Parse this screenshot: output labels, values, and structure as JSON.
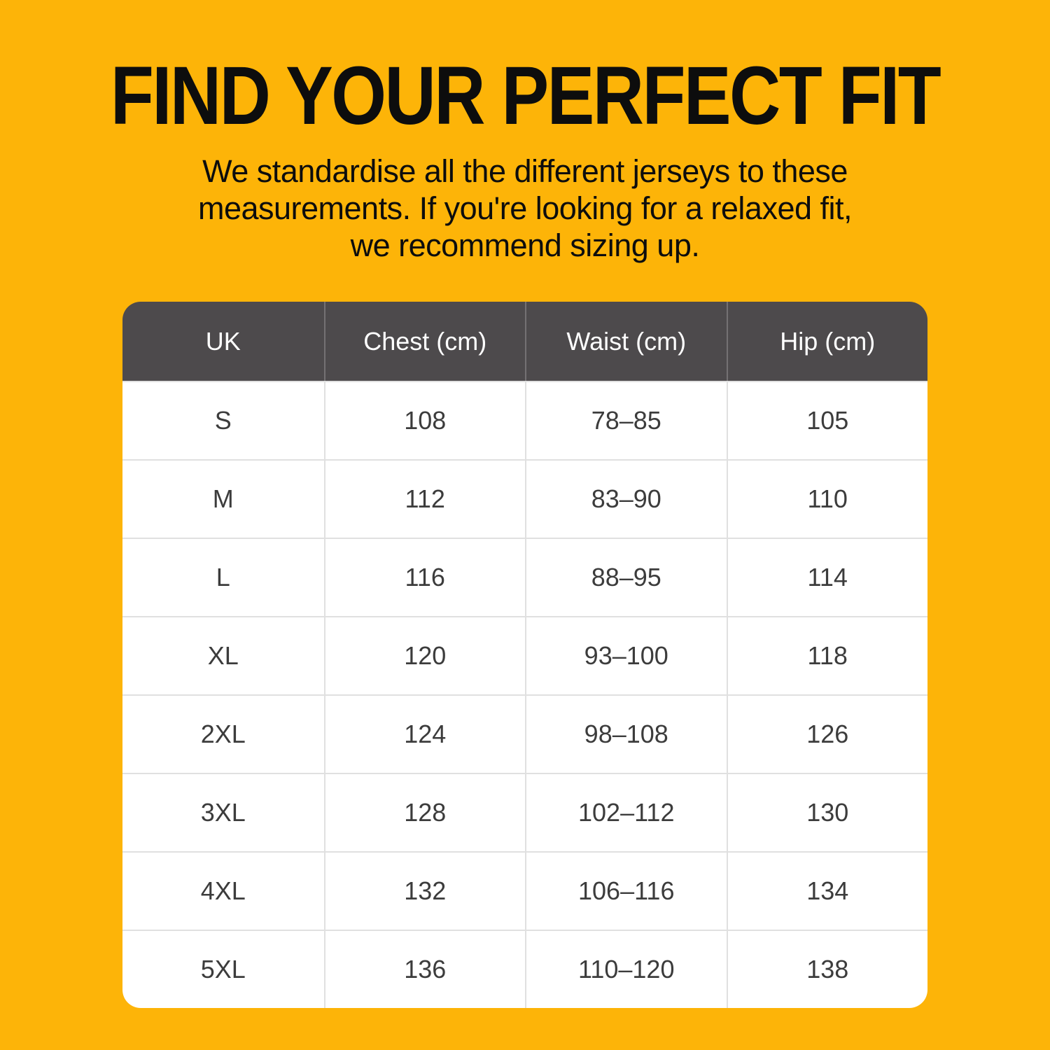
{
  "colors": {
    "background": "#FDB408",
    "table-header-bg": "#4D4A4C",
    "table-header-text": "#FFFFFF",
    "cell-text": "#3C3C3C",
    "divider": "#E0E0E0",
    "title-text": "#0D0D0D"
  },
  "header": {
    "title": "FIND YOUR PERFECT FIT",
    "subtitle_lines": [
      "We standardise all the different jerseys to these",
      "measurements. If you're looking for a relaxed fit,",
      "we recommend sizing up."
    ]
  },
  "table": {
    "columns": [
      "UK",
      "Chest (cm)",
      "Waist (cm)",
      "Hip (cm)"
    ],
    "rows": [
      [
        "S",
        "108",
        "78–85",
        "105"
      ],
      [
        "M",
        "112",
        "83–90",
        "110"
      ],
      [
        "L",
        "116",
        "88–95",
        "114"
      ],
      [
        "XL",
        "120",
        "93–100",
        "118"
      ],
      [
        "2XL",
        "124",
        "98–108",
        "126"
      ],
      [
        "3XL",
        "128",
        "102–112",
        "130"
      ],
      [
        "4XL",
        "132",
        "106–116",
        "134"
      ],
      [
        "5XL",
        "136",
        "110–120",
        "138"
      ]
    ]
  },
  "chart_data": {
    "type": "table",
    "title": "FIND YOUR PERFECT FIT",
    "subtitle": "We standardise all the different jerseys to these measurements. If you're looking for a relaxed fit, we recommend sizing up.",
    "columns": [
      "UK",
      "Chest (cm)",
      "Waist (cm)",
      "Hip (cm)"
    ],
    "rows": [
      {
        "uk": "S",
        "chest_cm": 108,
        "waist_cm": "78–85",
        "hip_cm": 105
      },
      {
        "uk": "M",
        "chest_cm": 112,
        "waist_cm": "83–90",
        "hip_cm": 110
      },
      {
        "uk": "L",
        "chest_cm": 116,
        "waist_cm": "88–95",
        "hip_cm": 114
      },
      {
        "uk": "XL",
        "chest_cm": 120,
        "waist_cm": "93–100",
        "hip_cm": 118
      },
      {
        "uk": "2XL",
        "chest_cm": 124,
        "waist_cm": "98–108",
        "hip_cm": 126
      },
      {
        "uk": "3XL",
        "chest_cm": 128,
        "waist_cm": "102–112",
        "hip_cm": 130
      },
      {
        "uk": "4XL",
        "chest_cm": 132,
        "waist_cm": "106–116",
        "hip_cm": 134
      },
      {
        "uk": "5XL",
        "chest_cm": 136,
        "waist_cm": "110–120",
        "hip_cm": 138
      }
    ]
  }
}
